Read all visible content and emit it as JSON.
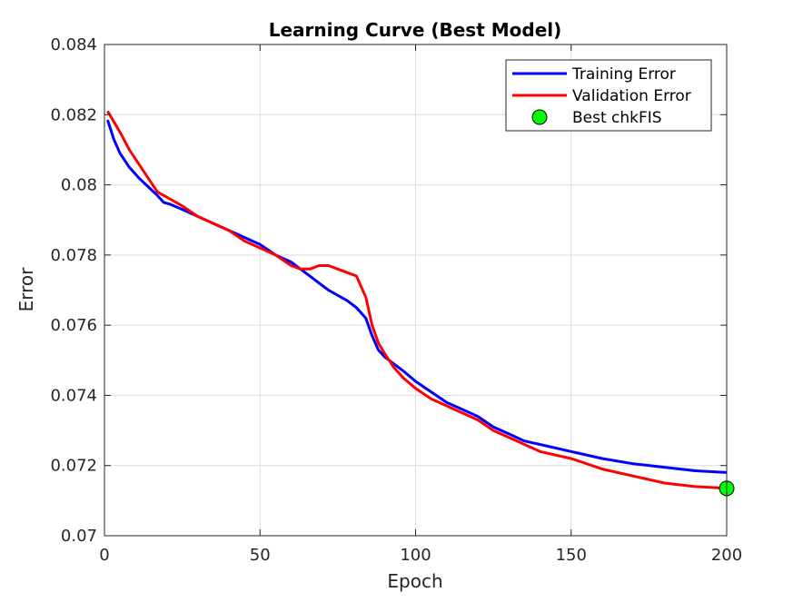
{
  "chart_data": {
    "type": "line",
    "title": "Learning Curve (Best Model)",
    "xlabel": "Epoch",
    "ylabel": "Error",
    "xlim": [
      0,
      200
    ],
    "ylim": [
      0.07,
      0.084
    ],
    "xticks": [
      0,
      50,
      100,
      150,
      200
    ],
    "xtick_labels": [
      "0",
      "50",
      "100",
      "150",
      "200"
    ],
    "yticks": [
      0.07,
      0.072,
      0.074,
      0.076,
      0.078,
      0.08,
      0.082,
      0.084
    ],
    "ytick_labels": [
      "0.07",
      "0.072",
      "0.074",
      "0.076",
      "0.078",
      "0.08",
      "0.082",
      "0.084"
    ],
    "grid": true,
    "legend_position": "top-right",
    "series": [
      {
        "name": "Training Error",
        "color": "#0000ff",
        "x": [
          1,
          3,
          5,
          8,
          11,
          14,
          17,
          19,
          21,
          25,
          30,
          35,
          40,
          45,
          50,
          55,
          60,
          63,
          66,
          69,
          72,
          75,
          78,
          81,
          84,
          86,
          88,
          90,
          93,
          96,
          100,
          105,
          110,
          115,
          120,
          125,
          130,
          135,
          140,
          150,
          160,
          170,
          180,
          190,
          200
        ],
        "y": [
          0.08185,
          0.0813,
          0.0809,
          0.0805,
          0.0802,
          0.07995,
          0.0797,
          0.0795,
          0.07945,
          0.0793,
          0.0791,
          0.0789,
          0.0787,
          0.0785,
          0.0783,
          0.078,
          0.0778,
          0.0776,
          0.0774,
          0.0772,
          0.077,
          0.07685,
          0.0767,
          0.0765,
          0.0762,
          0.0757,
          0.0753,
          0.0751,
          0.0749,
          0.0747,
          0.0744,
          0.0741,
          0.0738,
          0.0736,
          0.0734,
          0.0731,
          0.0729,
          0.0727,
          0.0726,
          0.0724,
          0.0722,
          0.07205,
          0.07195,
          0.07185,
          0.0718
        ]
      },
      {
        "name": "Validation Error",
        "color": "#ff0000",
        "x": [
          1,
          3,
          5,
          8,
          11,
          14,
          17,
          19,
          21,
          25,
          30,
          35,
          40,
          45,
          50,
          55,
          60,
          63,
          66,
          69,
          72,
          75,
          78,
          81,
          84,
          86,
          88,
          90,
          93,
          96,
          100,
          105,
          110,
          115,
          120,
          125,
          130,
          135,
          140,
          150,
          160,
          170,
          180,
          190,
          200
        ],
        "y": [
          0.0821,
          0.0818,
          0.0815,
          0.081,
          0.0806,
          0.0802,
          0.0798,
          0.0797,
          0.0796,
          0.0794,
          0.0791,
          0.0789,
          0.0787,
          0.0784,
          0.0782,
          0.078,
          0.0777,
          0.0776,
          0.0776,
          0.0777,
          0.0777,
          0.0776,
          0.0775,
          0.0774,
          0.0768,
          0.076,
          0.0755,
          0.0752,
          0.0748,
          0.0745,
          0.0742,
          0.0739,
          0.0737,
          0.0735,
          0.0733,
          0.073,
          0.0728,
          0.0726,
          0.0724,
          0.0722,
          0.0719,
          0.0717,
          0.0715,
          0.0714,
          0.07135
        ]
      }
    ],
    "markers": [
      {
        "name": "Best chkFIS",
        "x": 200,
        "y": 0.07135,
        "color": "#00ff00"
      }
    ]
  }
}
